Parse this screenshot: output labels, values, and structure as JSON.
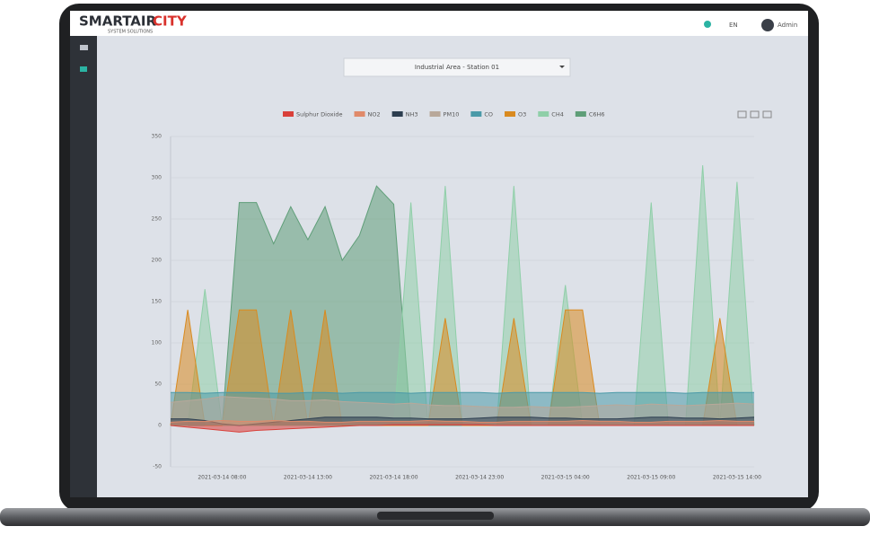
{
  "header": {
    "brand": "SMARTAIR",
    "brand_accent": "CITY",
    "tagline": "SYSTEM SOLUTIONS",
    "language": "EN",
    "user": "Admin"
  },
  "selector": {
    "label": "Industrial Area - Station 01"
  },
  "chart_data": {
    "type": "area",
    "categories": [
      null,
      null,
      null,
      "2021-03-14 08:00",
      null,
      null,
      null,
      null,
      "2021-03-14 13:00",
      null,
      null,
      null,
      null,
      "2021-03-14 18:00",
      null,
      null,
      null,
      null,
      "2021-03-14 23:00",
      null,
      null,
      null,
      null,
      "2021-03-15 04:00",
      null,
      null,
      null,
      null,
      "2021-03-15 09:00",
      null,
      null,
      null,
      null,
      "2021-03-15 14:00",
      null
    ],
    "ylim": [
      -50,
      350
    ],
    "yticks": [
      -50,
      0,
      50,
      100,
      150,
      200,
      250,
      300,
      350
    ],
    "grid": true,
    "series": [
      {
        "name": "C6H6",
        "color": "#5f9e78",
        "values": [
          0,
          0,
          0,
          0,
          270,
          270,
          220,
          265,
          225,
          265,
          200,
          230,
          290,
          268,
          0,
          0,
          0,
          0,
          0,
          0,
          0,
          0,
          0,
          0,
          0,
          0,
          0,
          0,
          0,
          0,
          0,
          0,
          0,
          0,
          0
        ]
      },
      {
        "name": "CH4",
        "color": "#8fcfa8",
        "values": [
          0,
          0,
          165,
          0,
          0,
          0,
          0,
          0,
          0,
          0,
          0,
          0,
          0,
          0,
          270,
          0,
          290,
          0,
          0,
          0,
          290,
          0,
          0,
          170,
          0,
          0,
          0,
          0,
          270,
          0,
          0,
          315,
          0,
          295,
          0
        ]
      },
      {
        "name": "O3",
        "color": "#d98a1f",
        "values": [
          0,
          140,
          0,
          0,
          140,
          140,
          0,
          140,
          0,
          140,
          0,
          0,
          0,
          0,
          0,
          0,
          130,
          0,
          0,
          0,
          130,
          0,
          0,
          140,
          140,
          0,
          0,
          0,
          0,
          0,
          0,
          0,
          130,
          0,
          0
        ]
      },
      {
        "name": "CO",
        "color": "#4a9aa8",
        "values": [
          40,
          40,
          39,
          40,
          40,
          40,
          39,
          39,
          40,
          40,
          39,
          40,
          40,
          40,
          39,
          40,
          40,
          40,
          40,
          39,
          40,
          40,
          40,
          40,
          40,
          39,
          40,
          40,
          40,
          40,
          39,
          40,
          40,
          40,
          40
        ]
      },
      {
        "name": "PM10",
        "color": "#b8a89a",
        "values": [
          28,
          30,
          32,
          35,
          34,
          33,
          32,
          30,
          30,
          31,
          29,
          28,
          27,
          26,
          27,
          25,
          24,
          24,
          23,
          22,
          22,
          23,
          22,
          22,
          23,
          24,
          25,
          24,
          26,
          25,
          24,
          25,
          26,
          27,
          26
        ]
      },
      {
        "name": "NH3",
        "color": "#2d3e50",
        "values": [
          8,
          8,
          6,
          2,
          0,
          2,
          4,
          6,
          8,
          10,
          10,
          10,
          10,
          9,
          9,
          8,
          8,
          8,
          9,
          10,
          10,
          10,
          9,
          9,
          8,
          8,
          8,
          9,
          10,
          10,
          9,
          9,
          8,
          9,
          10
        ]
      },
      {
        "name": "NO2",
        "color": "#e08a6a",
        "values": [
          4,
          5,
          5,
          6,
          5,
          5,
          6,
          5,
          5,
          4,
          4,
          5,
          5,
          5,
          5,
          6,
          5,
          5,
          4,
          4,
          5,
          5,
          5,
          5,
          6,
          5,
          5,
          4,
          4,
          5,
          5,
          5,
          6,
          5,
          5
        ]
      },
      {
        "name": "Sulphur Dioxide",
        "color": "#d9403a",
        "values": [
          0,
          -2,
          -4,
          -6,
          -8,
          -6,
          -5,
          -4,
          -3,
          -2,
          -1,
          0,
          0,
          1,
          1,
          1,
          1,
          1,
          1,
          0,
          0,
          0,
          0,
          0,
          0,
          0,
          0,
          0,
          0,
          0,
          0,
          0,
          0,
          0,
          0
        ]
      }
    ]
  }
}
